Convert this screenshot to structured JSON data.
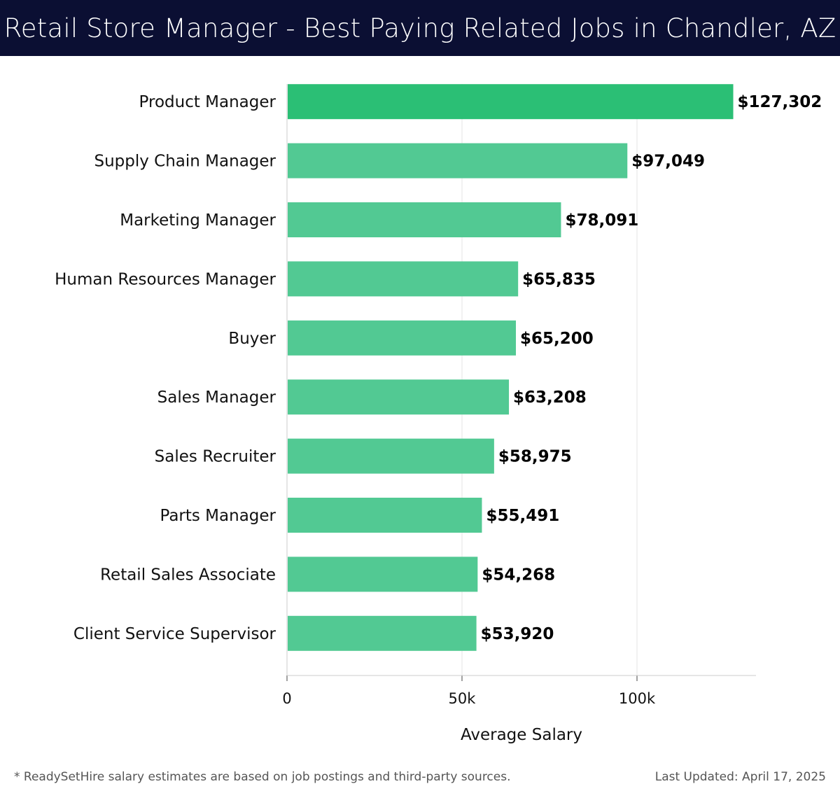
{
  "header": {
    "title": "Retail Store Manager - Best Paying Related Jobs in Chandler, AZ"
  },
  "chart_data": {
    "type": "bar",
    "orientation": "horizontal",
    "categories": [
      "Product Manager",
      "Supply Chain Manager",
      "Marketing Manager",
      "Human Resources Manager",
      "Buyer",
      "Sales Manager",
      "Sales Recruiter",
      "Parts Manager",
      "Retail Sales Associate",
      "Client Service Supervisor"
    ],
    "values": [
      127302,
      97049,
      78091,
      65835,
      65200,
      63208,
      58975,
      55491,
      54268,
      53920
    ],
    "value_labels": [
      "$127,302",
      "$97,049",
      "$78,091",
      "$65,835",
      "$65,200",
      "$63,208",
      "$58,975",
      "$55,491",
      "$54,268",
      "$53,920"
    ],
    "xlabel": "Average Salary",
    "ylabel": "",
    "xlim": [
      0,
      134000
    ],
    "x_ticks": [
      0,
      50000,
      100000
    ],
    "x_tick_labels": [
      "0",
      "50k",
      "100k"
    ],
    "grid": true,
    "colors": {
      "top_bar": "#2bbf75",
      "bar": "#52c993",
      "grid": "#e6e6e6",
      "axis": "#cccccc"
    }
  },
  "footer": {
    "note": "* ReadySetHire salary estimates are based on job postings and third-party sources.",
    "updated": "Last Updated: April 17, 2025"
  }
}
